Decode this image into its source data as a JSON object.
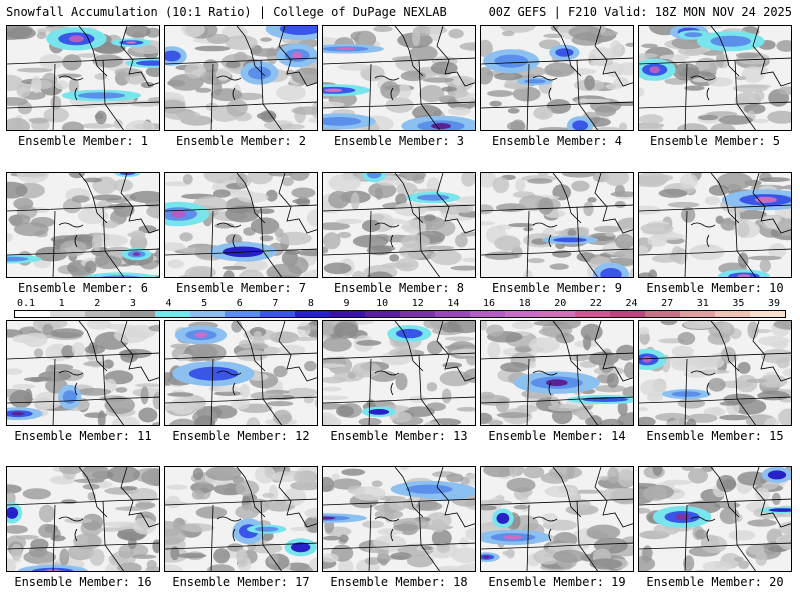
{
  "header": {
    "title": "Snowfall Accumulation (10:1 Ratio) | College of DuPage NEXLAB",
    "run_info": "00Z GEFS | F210 Valid: 18Z MON NOV 24 2025"
  },
  "colorbar": {
    "labels": [
      "0.1",
      "1",
      "2",
      "3",
      "4",
      "5",
      "6",
      "7",
      "8",
      "9",
      "10",
      "12",
      "14",
      "16",
      "18",
      "20",
      "22",
      "24",
      "27",
      "31",
      "35",
      "39"
    ],
    "colors": [
      "#ffffff",
      "#d8d8d8",
      "#b8b8b8",
      "#989898",
      "#78e4ec",
      "#8cc0f0",
      "#5a90ea",
      "#3a56e6",
      "#2820c8",
      "#3a12a8",
      "#5a2296",
      "#7a34a8",
      "#9a4ab8",
      "#b45ec4",
      "#c86ec8",
      "#d070b8",
      "#c85a98",
      "#b84880",
      "#c87488",
      "#e0a0a0",
      "#f0c4b4",
      "#f8e0cc"
    ]
  },
  "panels": [
    {
      "caption": "Ensemble Member: 1"
    },
    {
      "caption": "Ensemble Member: 2"
    },
    {
      "caption": "Ensemble Member: 3"
    },
    {
      "caption": "Ensemble Member: 4"
    },
    {
      "caption": "Ensemble Member: 5"
    },
    {
      "caption": "Ensemble Member: 6"
    },
    {
      "caption": "Ensemble Member: 7"
    },
    {
      "caption": "Ensemble Member: 8"
    },
    {
      "caption": "Ensemble Member: 9"
    },
    {
      "caption": "Ensemble Member: 10"
    },
    {
      "caption": "Ensemble Member: 11"
    },
    {
      "caption": "Ensemble Member: 12"
    },
    {
      "caption": "Ensemble Member: 13"
    },
    {
      "caption": "Ensemble Member: 14"
    },
    {
      "caption": "Ensemble Member: 15"
    },
    {
      "caption": "Ensemble Member: 16"
    },
    {
      "caption": "Ensemble Member: 17"
    },
    {
      "caption": "Ensemble Member: 18"
    },
    {
      "caption": "Ensemble Member: 19"
    },
    {
      "caption": "Ensemble Member: 20"
    }
  ]
}
